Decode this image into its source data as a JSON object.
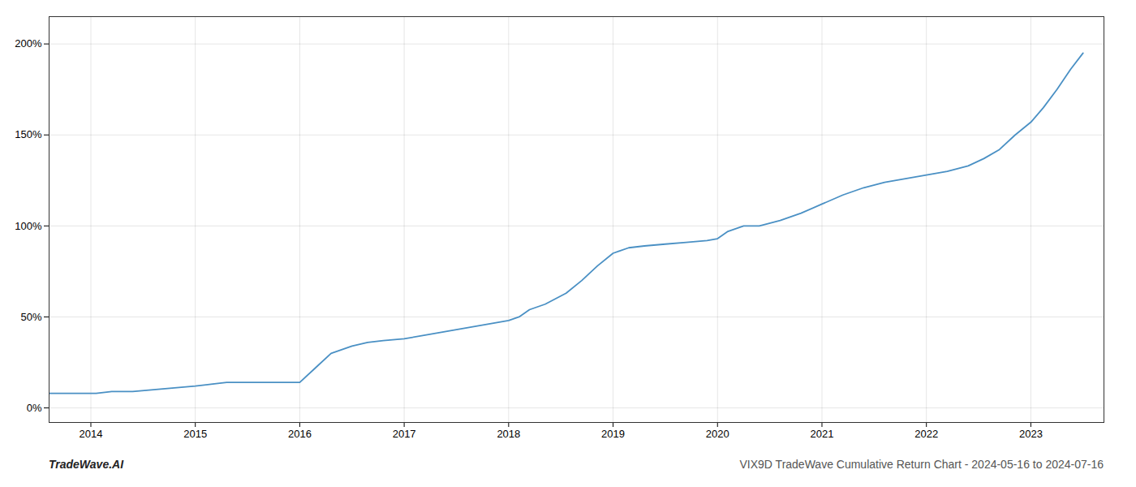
{
  "chart_data": {
    "type": "line",
    "title": "VIX9D TradeWave Cumulative Return Chart - 2024-05-16 to 2024-07-16",
    "annotations": [
      "TradeWave.AI"
    ],
    "x": [
      2013.6,
      2013.75,
      2013.9,
      2014.05,
      2014.2,
      2014.4,
      2014.6,
      2014.8,
      2015.0,
      2015.15,
      2015.3,
      2015.5,
      2015.7,
      2015.85,
      2016.0,
      2016.15,
      2016.3,
      2016.5,
      2016.65,
      2016.8,
      2017.0,
      2017.2,
      2017.4,
      2017.6,
      2017.8,
      2018.0,
      2018.1,
      2018.2,
      2018.35,
      2018.55,
      2018.7,
      2018.85,
      2019.0,
      2019.15,
      2019.3,
      2019.5,
      2019.7,
      2019.9,
      2020.0,
      2020.1,
      2020.25,
      2020.4,
      2020.6,
      2020.8,
      2021.0,
      2021.2,
      2021.4,
      2021.6,
      2021.8,
      2022.0,
      2022.2,
      2022.4,
      2022.55,
      2022.7,
      2022.85,
      2023.0,
      2023.12,
      2023.25,
      2023.38,
      2023.5
    ],
    "values": [
      8,
      8,
      8,
      8,
      9,
      9,
      10,
      11,
      12,
      13,
      14,
      14,
      14,
      14,
      14,
      22,
      30,
      34,
      36,
      37,
      38,
      40,
      42,
      44,
      46,
      48,
      50,
      54,
      57,
      63,
      70,
      78,
      85,
      88,
      89,
      90,
      91,
      92,
      93,
      97,
      100,
      100,
      103,
      107,
      112,
      117,
      121,
      124,
      126,
      128,
      130,
      133,
      137,
      142,
      150,
      157,
      165,
      175,
      186,
      195
    ],
    "color": "#4a90c4",
    "xlim": [
      2013.6,
      2023.7
    ],
    "ylim": [
      -8,
      215
    ],
    "xticks": [
      2014,
      2015,
      2016,
      2017,
      2018,
      2019,
      2020,
      2021,
      2022,
      2023
    ],
    "yticks": [
      {
        "value": 0,
        "label": "0%"
      },
      {
        "value": 50,
        "label": "50%"
      },
      {
        "value": 100,
        "label": "100%"
      },
      {
        "value": 150,
        "label": "150%"
      },
      {
        "value": 200,
        "label": "200%"
      }
    ],
    "grid": true
  }
}
